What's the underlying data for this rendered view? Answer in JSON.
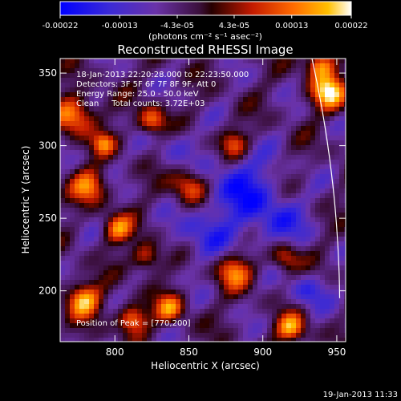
{
  "chart_data": {
    "type": "heatmap",
    "title": "Reconstructed RHESSI Image",
    "xlabel": "Heliocentric X (arcsec)",
    "ylabel": "Heliocentric Y (arcsec)",
    "xlim": [
      763,
      956
    ],
    "ylim": [
      165,
      360
    ],
    "xticks": [
      800,
      850,
      900,
      950
    ],
    "yticks": [
      200,
      250,
      300,
      350
    ],
    "colorbar": {
      "units_label": "(photons cm⁻² s⁻¹ asec⁻²)",
      "ticks": [
        "-0.00022",
        "-0.00013",
        "-4.3e-05",
        "4.3e-05",
        "0.00013",
        "0.00022"
      ],
      "range": [
        -0.00022,
        0.00022
      ]
    },
    "annotations": [
      "18-Jan-2013 22:20:28.000 to 22:23:50.000",
      "Detectors: 3F 5F 6F 7F 8F 9F, Att 0",
      "Energy Range: 25.0 - 50.0 keV",
      "Clean     Total counts: 3.72E+03"
    ],
    "peak_label": "Position of Peak = [770,200]",
    "peak_position": [
      770,
      200
    ],
    "grid": false
  },
  "footer": {
    "timestamp": "19-Jan-2013 11:33"
  }
}
